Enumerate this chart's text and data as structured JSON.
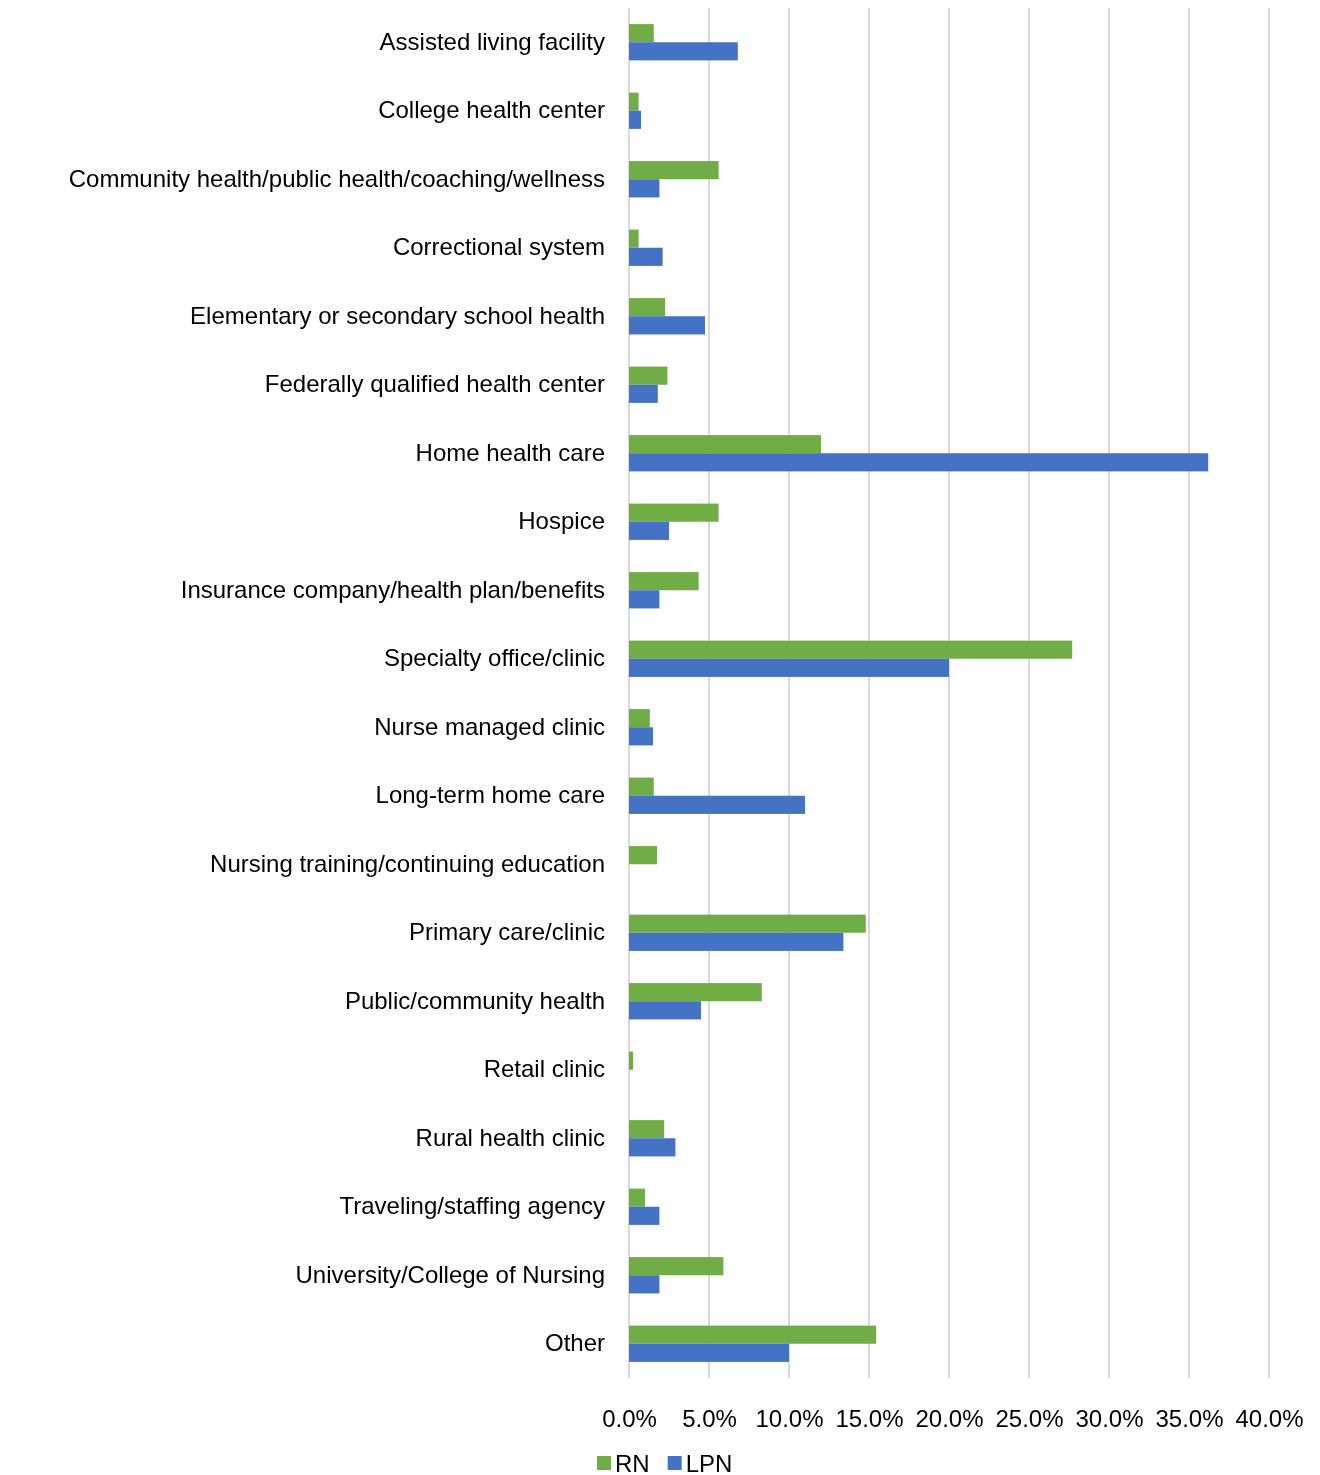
{
  "chart_data": {
    "type": "bar",
    "orientation": "horizontal",
    "categories": [
      "Assisted living facility",
      "College health center",
      "Community health/public health/coaching/wellness",
      "Correctional system",
      "Elementary or secondary school health",
      "Federally qualified health center",
      "Home health care",
      "Hospice",
      "Insurance company/health plan/benefits",
      "Specialty office/clinic",
      "Nurse managed clinic",
      "Long-term home care",
      "Nursing training/continuing education",
      "Primary care/clinic",
      "Public/community health",
      "Retail clinic",
      "Rural health clinic",
      "Traveling/staffing agency",
      "University/College of Nursing",
      "Other"
    ],
    "series": [
      {
        "name": "RN",
        "color": "#70ad47",
        "values": [
          1.55,
          0.6,
          5.6,
          0.6,
          2.25,
          2.4,
          12.0,
          5.6,
          4.35,
          27.7,
          1.3,
          1.55,
          1.75,
          14.8,
          8.3,
          0.25,
          2.2,
          1.0,
          5.9,
          15.45
        ]
      },
      {
        "name": "LPN",
        "color": "#4472c4",
        "values": [
          6.8,
          0.75,
          1.9,
          2.1,
          4.75,
          1.8,
          36.2,
          2.5,
          1.9,
          20.0,
          1.5,
          11.0,
          null,
          13.4,
          4.5,
          null,
          2.9,
          1.9,
          1.9,
          10.0
        ]
      }
    ],
    "xlim": [
      0,
      40
    ],
    "xticks": [
      {
        "value": 0,
        "label": "0.0%"
      },
      {
        "value": 5,
        "label": "5.0%"
      },
      {
        "value": 10,
        "label": "10.0%"
      },
      {
        "value": 15,
        "label": "15.0%"
      },
      {
        "value": 20,
        "label": "20.0%"
      },
      {
        "value": 25,
        "label": "25.0%"
      },
      {
        "value": 30,
        "label": "30.0%"
      },
      {
        "value": 35,
        "label": "35.0%"
      },
      {
        "value": 40,
        "label": "40.0%"
      }
    ],
    "grid": "x",
    "legend": "bottom"
  }
}
